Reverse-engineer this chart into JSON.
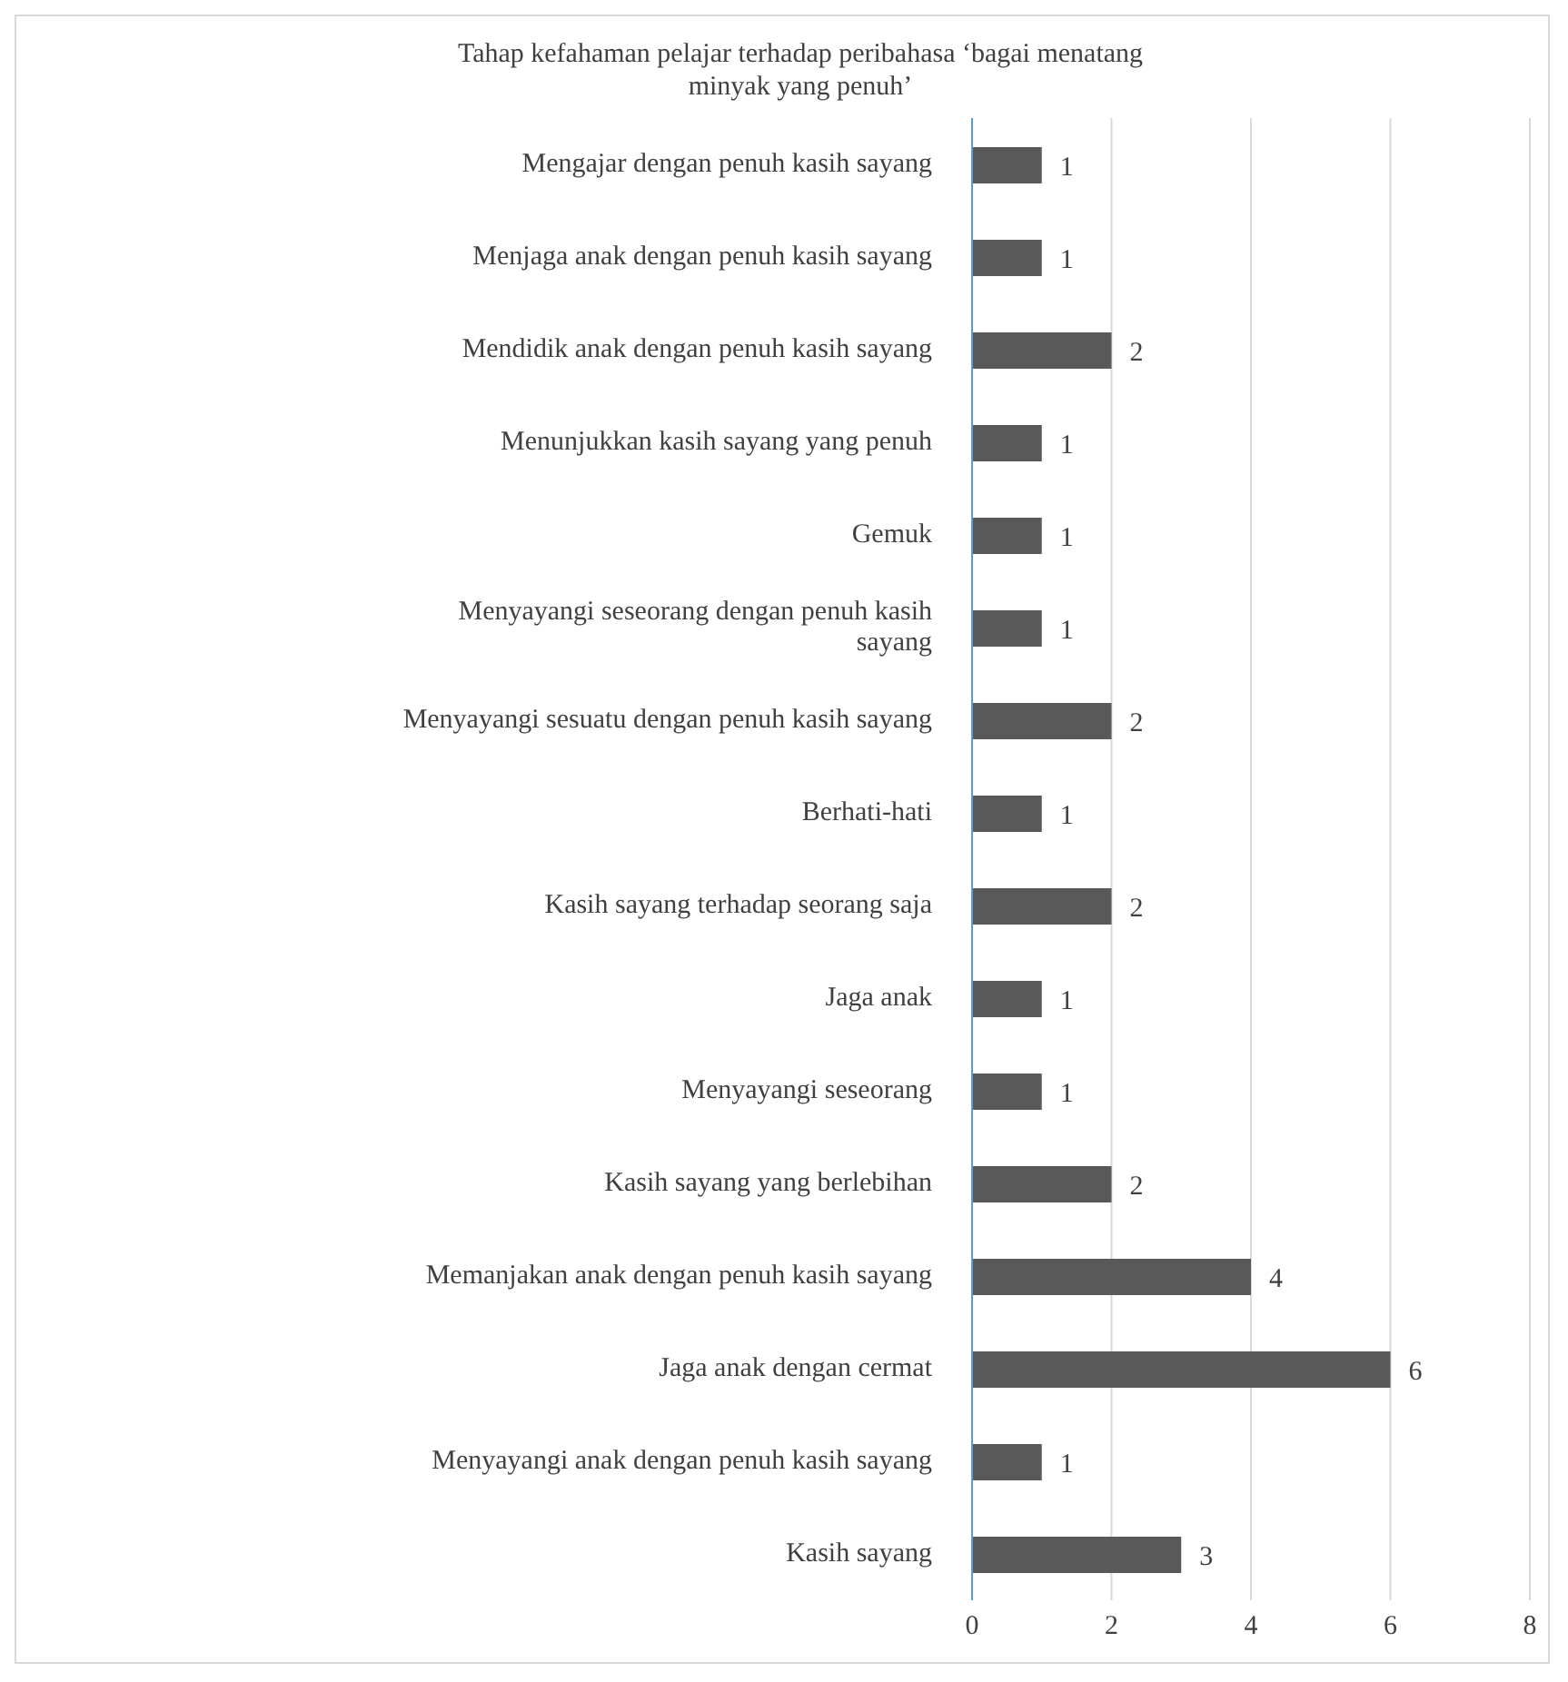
{
  "chart_data": {
    "type": "bar",
    "orientation": "horizontal",
    "title": "Tahap kefahaman pelajar terhadap peribahasa ‘bagai menatang minyak yang penuh’",
    "categories": [
      "Mengajar dengan penuh kasih sayang",
      "Menjaga anak dengan penuh kasih sayang",
      "Mendidik anak dengan penuh kasih sayang",
      "Menunjukkan kasih sayang yang penuh",
      "Gemuk",
      "Menyayangi seseorang dengan penuh kasih sayang",
      "Menyayangi sesuatu dengan penuh kasih sayang",
      "Berhati-hati",
      "Kasih sayang terhadap seorang saja",
      "Jaga anak",
      "Menyayangi seseorang",
      "Kasih sayang yang berlebihan",
      "Memanjakan anak dengan penuh kasih sayang",
      "Jaga anak dengan cermat",
      "Menyayangi anak dengan penuh kasih sayang",
      "Kasih sayang"
    ],
    "values": [
      1,
      1,
      2,
      1,
      1,
      1,
      2,
      1,
      2,
      1,
      1,
      2,
      4,
      6,
      1,
      3
    ],
    "color": "#595959",
    "xlim": [
      0,
      8
    ],
    "xticks": [
      0,
      2,
      4,
      6,
      8
    ],
    "grid": "x",
    "data_labels": true
  }
}
